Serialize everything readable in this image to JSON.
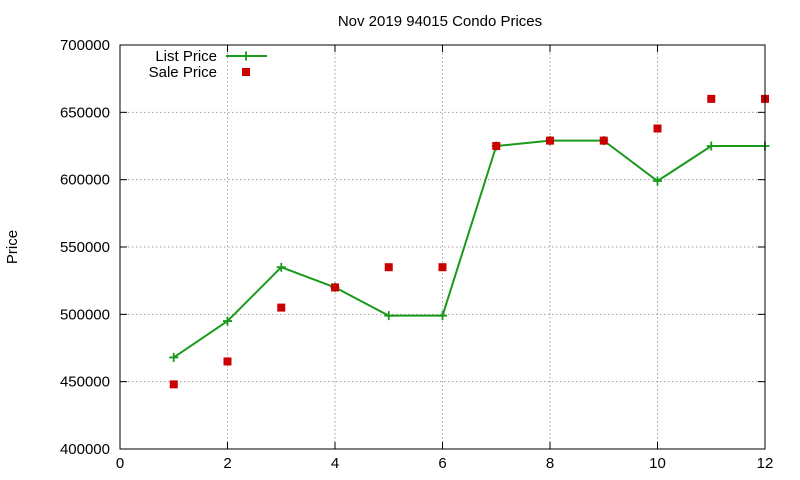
{
  "chart_data": {
    "type": "line",
    "title": "Nov 2019 94015 Condo Prices",
    "xlabel": "",
    "ylabel": "Price",
    "xlim": [
      0,
      12
    ],
    "ylim": [
      400000,
      700000
    ],
    "x_ticks": [
      0,
      2,
      4,
      6,
      8,
      10,
      12
    ],
    "y_ticks": [
      400000,
      450000,
      500000,
      550000,
      600000,
      650000,
      700000
    ],
    "grid": true,
    "legend_position": "top-left",
    "series": [
      {
        "name": "List Price",
        "style": "line with plus markers",
        "color": "#1a9a1a",
        "x": [
          1,
          2,
          3,
          4,
          5,
          6,
          7,
          8,
          9,
          10,
          11,
          12
        ],
        "y": [
          468000,
          495000,
          535000,
          520000,
          499000,
          499000,
          625000,
          629000,
          629000,
          599000,
          625000,
          625000
        ]
      },
      {
        "name": "Sale Price",
        "style": "square markers",
        "color": "#cc0000",
        "x": [
          1,
          2,
          3,
          4,
          5,
          6,
          7,
          8,
          9,
          10,
          11,
          12
        ],
        "y": [
          448000,
          465000,
          505000,
          520000,
          535000,
          535000,
          625000,
          629000,
          629000,
          638000,
          660000,
          660000
        ]
      }
    ]
  }
}
